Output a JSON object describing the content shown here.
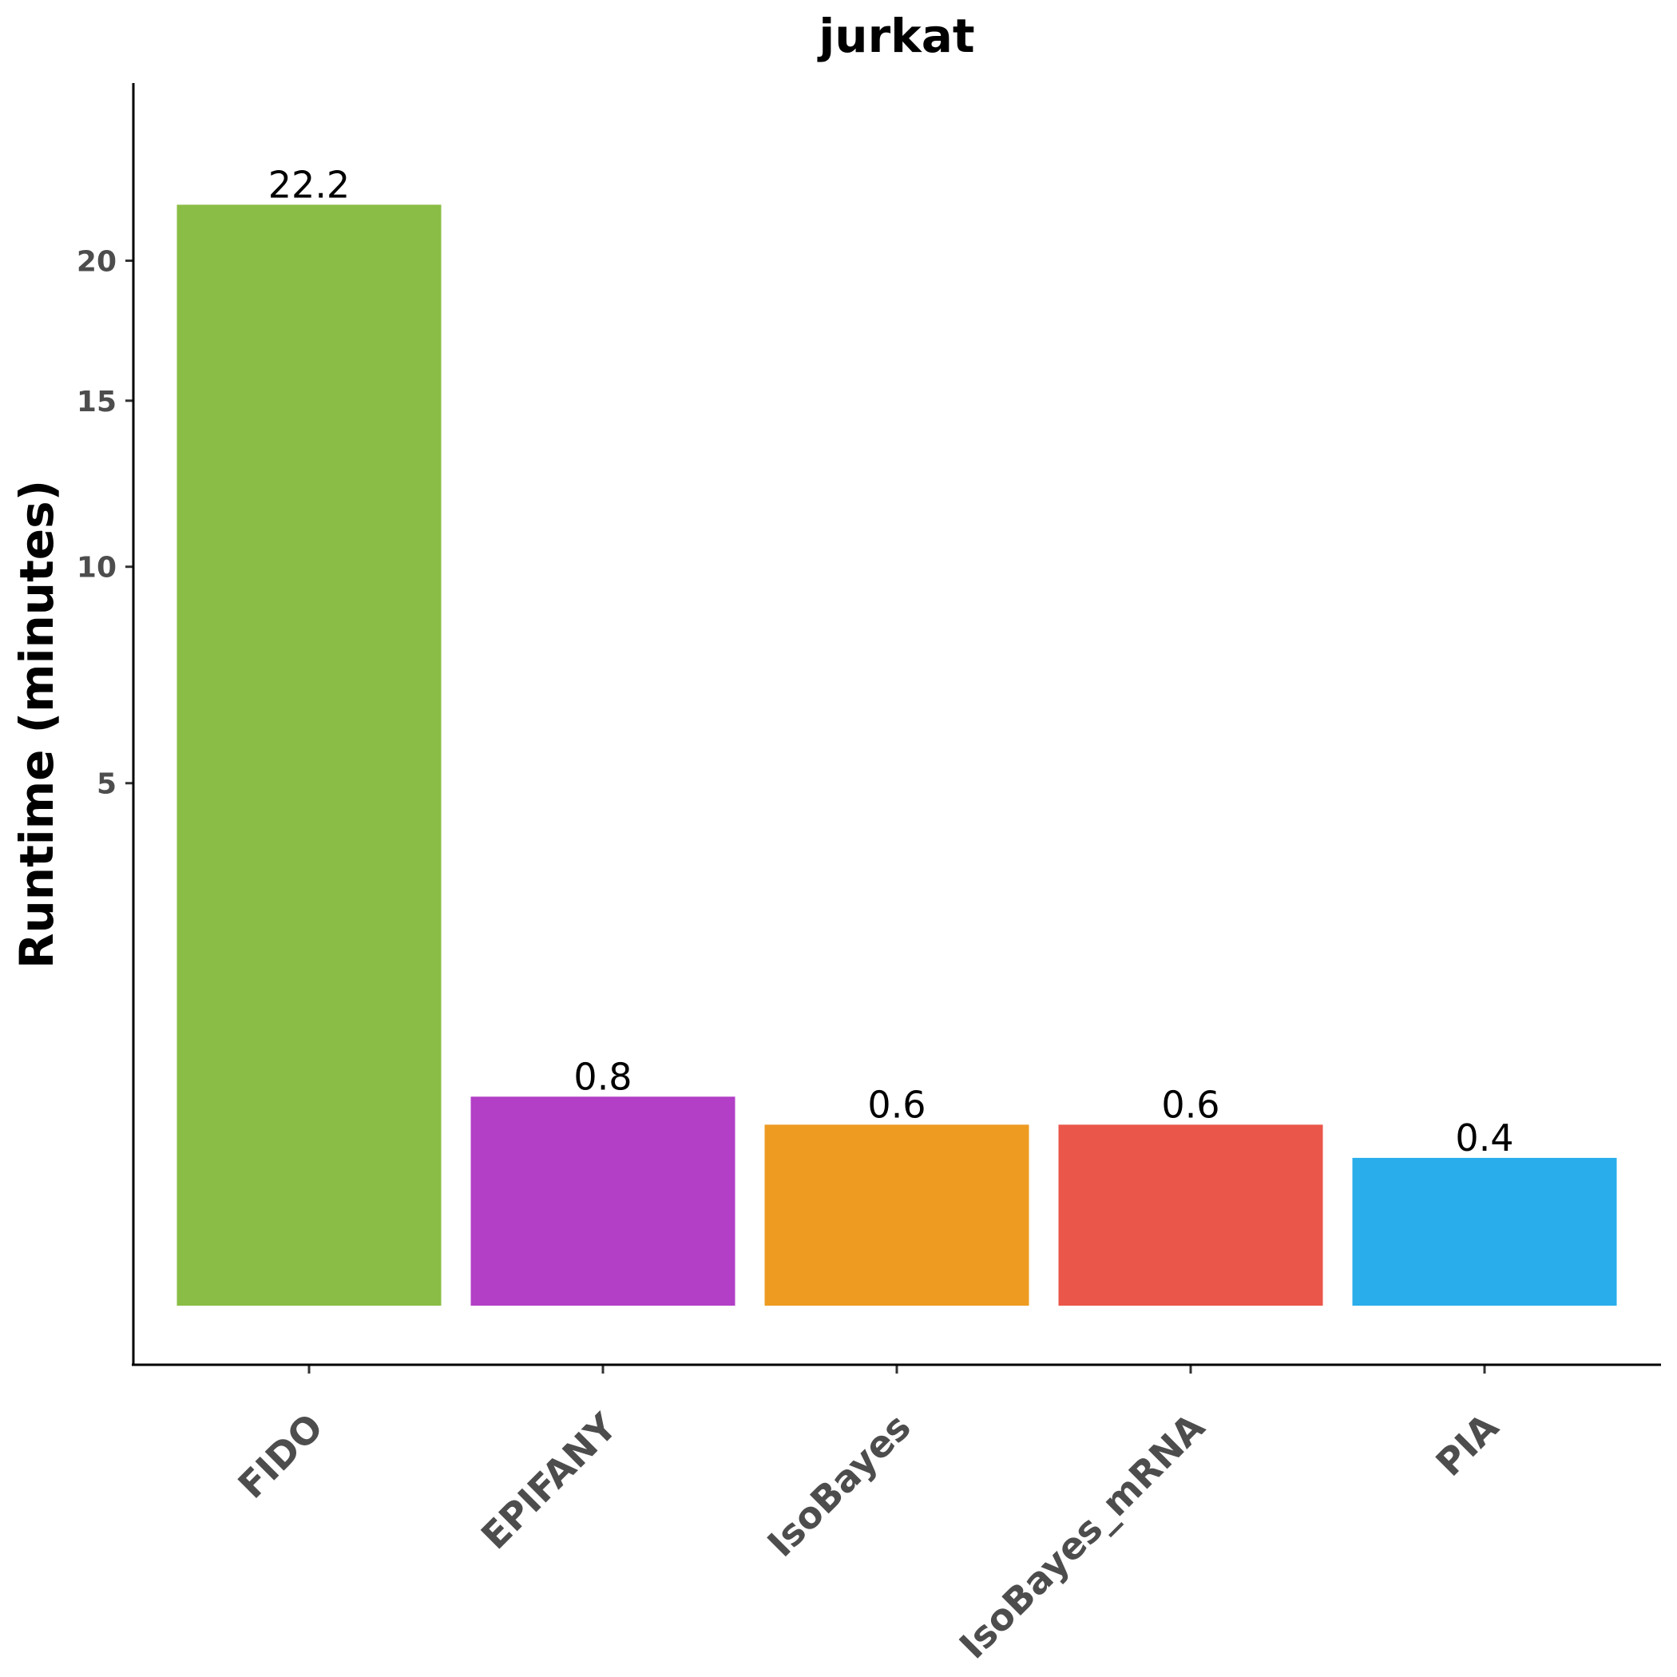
{
  "chart_data": {
    "type": "bar",
    "title": "jurkat",
    "xlabel": "",
    "ylabel": "Runtime (minutes)",
    "y_scale": "sqrt",
    "ylim": [
      0,
      23.5
    ],
    "yticks": [
      5,
      10,
      15,
      20
    ],
    "ytick_labels": [
      "5",
      "10",
      "15",
      "20"
    ],
    "grid": false,
    "legend": "none",
    "categories": [
      "FIDO",
      "EPIFANY",
      "IsoBayes",
      "IsoBayes_mRNA",
      "PIA"
    ],
    "values": [
      22.2,
      0.8,
      0.6,
      0.6,
      0.4
    ],
    "data_labels": [
      "22.2",
      "0.8",
      "0.6",
      "0.6",
      "0.4"
    ],
    "colors": [
      "#8abd45",
      "#b23fc6",
      "#ee9b22",
      "#ea5649",
      "#29aeeb"
    ]
  }
}
